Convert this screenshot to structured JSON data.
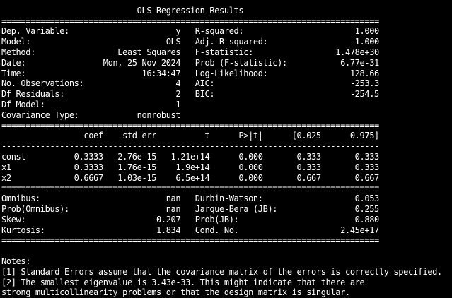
{
  "colors": {
    "background": "#000000",
    "foreground": "#ffffff"
  },
  "output": {
    "lines": [
      "",
      "                            OLS Regression Results                            ",
      "==============================================================================",
      "Dep. Variable:                      y   R-squared:                       1.000",
      "Model:                            OLS   Adj. R-squared:                  1.000",
      "Method:                 Least Squares   F-statistic:                 1.478e+30",
      "Date:                Mon, 25 Nov 2024   Prob (F-statistic):           6.77e-31",
      "Time:                        16:34:47   Log-Likelihood:                 128.66",
      "No. Observations:                   4   AIC:                            -253.3",
      "Df Residuals:                       2   BIC:                            -254.5",
      "Df Model:                           1                                         ",
      "Covariance Type:            nonrobust                                         ",
      "==============================================================================",
      "                 coef    std err          t      P>|t|      [0.025      0.975]",
      "------------------------------------------------------------------------------",
      "const          0.3333   2.76e-15   1.21e+14      0.000       0.333       0.333",
      "x1             0.3333   1.76e-15    1.9e+14      0.000       0.333       0.333",
      "x2             0.6667   1.03e-15    6.5e+14      0.000       0.667       0.667",
      "==============================================================================",
      "Omnibus:                          nan   Durbin-Watson:                   0.053",
      "Prob(Omnibus):                    nan   Jarque-Bera (JB):                0.255",
      "Skew:                           0.207   Prob(JB):                        0.880",
      "Kurtosis:                       1.834   Cond. No.                     2.45e+17",
      "==============================================================================",
      "",
      "Notes:",
      "[1] Standard Errors assume that the covariance matrix of the errors is correctly specified.",
      "[2] The smallest eigenvalue is 3.43e-33. This might indicate that there are",
      "strong multicollinearity problems or that the design matrix is singular.",
      ""
    ]
  }
}
